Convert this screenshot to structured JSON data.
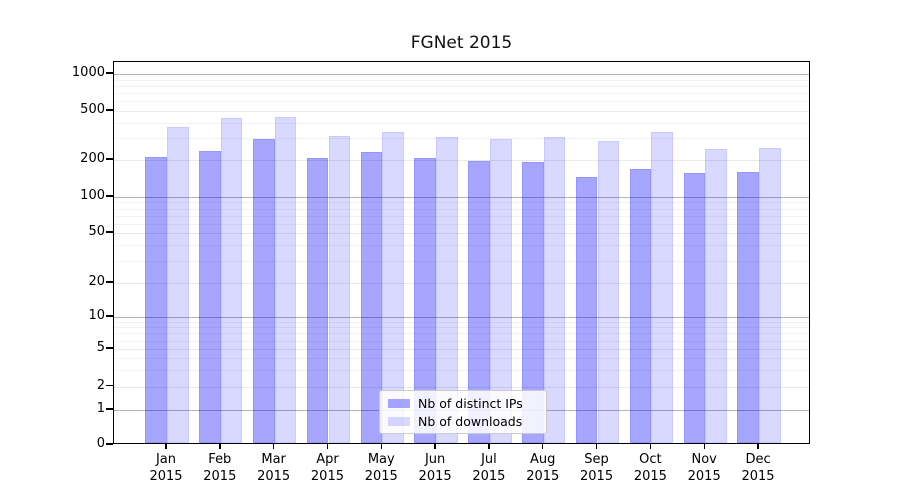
{
  "chart_data": {
    "type": "bar",
    "title": "FGNet 2015",
    "categories": [
      "Jan 2015",
      "Feb 2015",
      "Mar 2015",
      "Apr 2015",
      "May 2015",
      "Jun 2015",
      "Jul 2015",
      "Aug 2015",
      "Sep 2015",
      "Oct 2015",
      "Nov 2015",
      "Dec 2015"
    ],
    "months": [
      "Jan",
      "Feb",
      "Mar",
      "Apr",
      "May",
      "Jun",
      "Jul",
      "Aug",
      "Sep",
      "Oct",
      "Nov",
      "Dec"
    ],
    "year": "2015",
    "series": [
      {
        "name": "Nb of distinct IPs",
        "color": "rgba(0,0,255,0.35)",
        "color_hex": "#a6a6f2",
        "values": [
          202,
          228,
          285,
          200,
          223,
          200,
          189,
          184,
          141,
          162,
          152,
          155
        ]
      },
      {
        "name": "Nb of downloads",
        "color": "rgba(0,0,255,0.15)",
        "color_hex": "#d9d9f8",
        "values": [
          355,
          420,
          430,
          300,
          325,
          296,
          285,
          295,
          275,
          325,
          237,
          240
        ]
      }
    ],
    "xlabel": "",
    "ylabel": "",
    "yscale": "symlog",
    "yticks": [
      0,
      1,
      2,
      5,
      10,
      20,
      50,
      100,
      200,
      500,
      1000
    ],
    "minor_gridlines": [
      3,
      4,
      6,
      7,
      8,
      9,
      30,
      40,
      60,
      70,
      80,
      90,
      300,
      400,
      600,
      700,
      800,
      900
    ],
    "ylim": [
      0,
      1250
    ],
    "grid": true,
    "legend_position": "lower center"
  }
}
